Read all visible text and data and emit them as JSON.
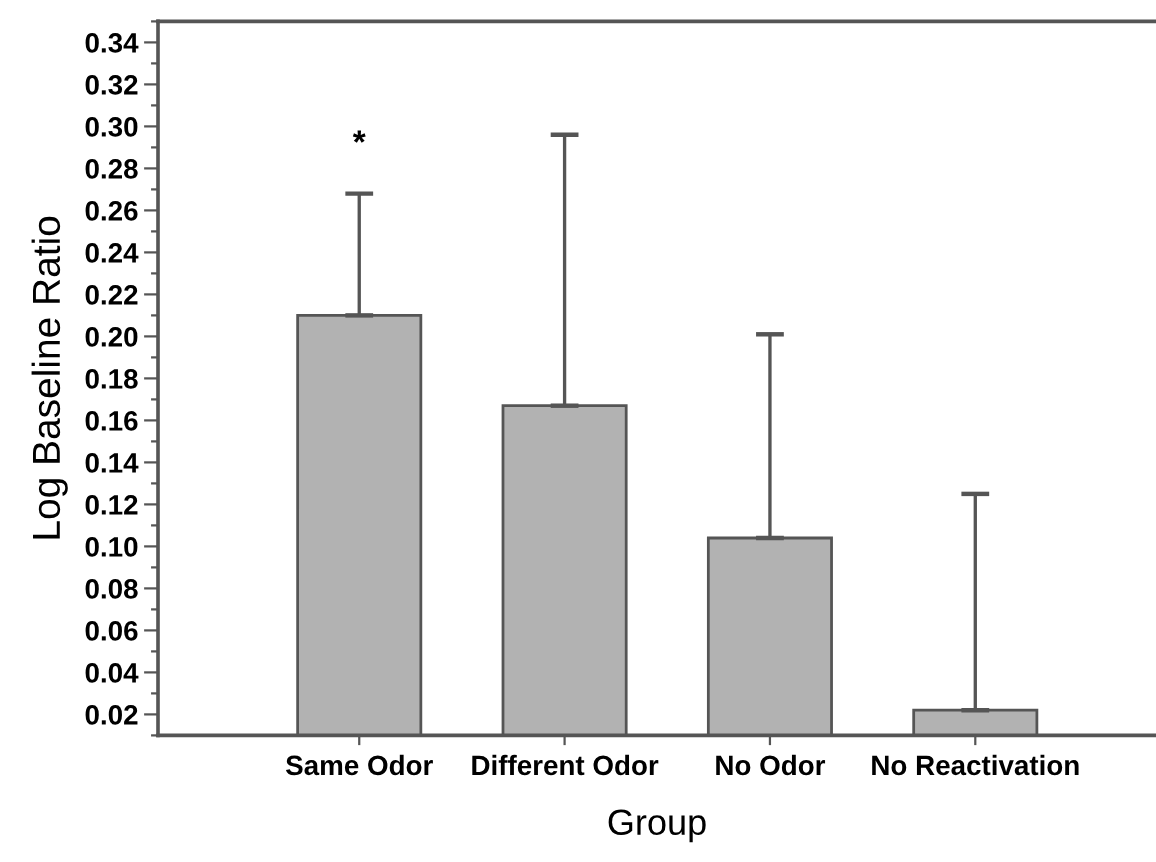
{
  "chart_data": {
    "type": "bar",
    "xlabel": "Group",
    "ylabel": "Log Baseline Ratio",
    "categories": [
      "Same Odor",
      "Different Odor",
      "No Odor",
      "No Reactivation"
    ],
    "values": [
      0.21,
      0.167,
      0.104,
      0.022
    ],
    "errors": [
      [
        0.21,
        0.268
      ],
      [
        0.167,
        0.296
      ],
      [
        0.104,
        0.201
      ],
      [
        0.022,
        0.125
      ]
    ],
    "color": "#b2b2b2",
    "ylim": [
      0.01,
      0.35
    ],
    "yticks": [
      {
        "value": 0.01,
        "label": null
      },
      0.02,
      {
        "value": 0.03,
        "label": null
      },
      0.04,
      {
        "value": 0.05,
        "label": null
      },
      0.06,
      {
        "value": 0.07,
        "label": null
      },
      0.08,
      {
        "value": 0.09,
        "label": null
      },
      {
        "value": 0.1,
        "label": "0.10"
      },
      {
        "value": 0.11,
        "label": null
      },
      0.12,
      {
        "value": 0.13,
        "label": null
      },
      0.14,
      {
        "value": 0.15,
        "label": null
      },
      0.16,
      {
        "value": 0.17,
        "label": null
      },
      0.18,
      {
        "value": 0.19,
        "label": null
      },
      {
        "value": 0.2,
        "label": "0.20"
      },
      {
        "value": 0.21,
        "label": null
      },
      0.22,
      {
        "value": 0.23,
        "label": null
      },
      0.24,
      {
        "value": 0.25,
        "label": null
      },
      0.26,
      {
        "value": 0.27,
        "label": null
      },
      0.28,
      {
        "value": 0.29,
        "label": null
      },
      {
        "value": 0.3,
        "label": "0.30"
      },
      {
        "value": 0.31,
        "label": null
      },
      0.32,
      {
        "value": 0.33,
        "label": null
      },
      0.34,
      {
        "value": 0.35,
        "label": null
      }
    ],
    "annotations": [
      "*"
    ],
    "grid": false,
    "legend": false
  }
}
